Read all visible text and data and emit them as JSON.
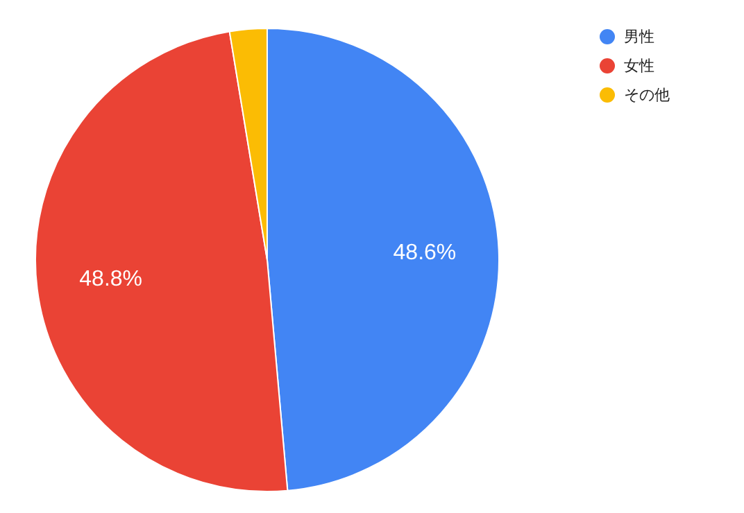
{
  "chart_data": {
    "type": "pie",
    "categories": [
      "男性",
      "女性",
      "その他"
    ],
    "values": [
      48.6,
      48.8,
      2.6
    ],
    "colors": [
      "#4285f4",
      "#ea4335",
      "#fbbc04"
    ],
    "value_labels": [
      "48.6%",
      "48.8%",
      null
    ],
    "legend": "top right"
  }
}
